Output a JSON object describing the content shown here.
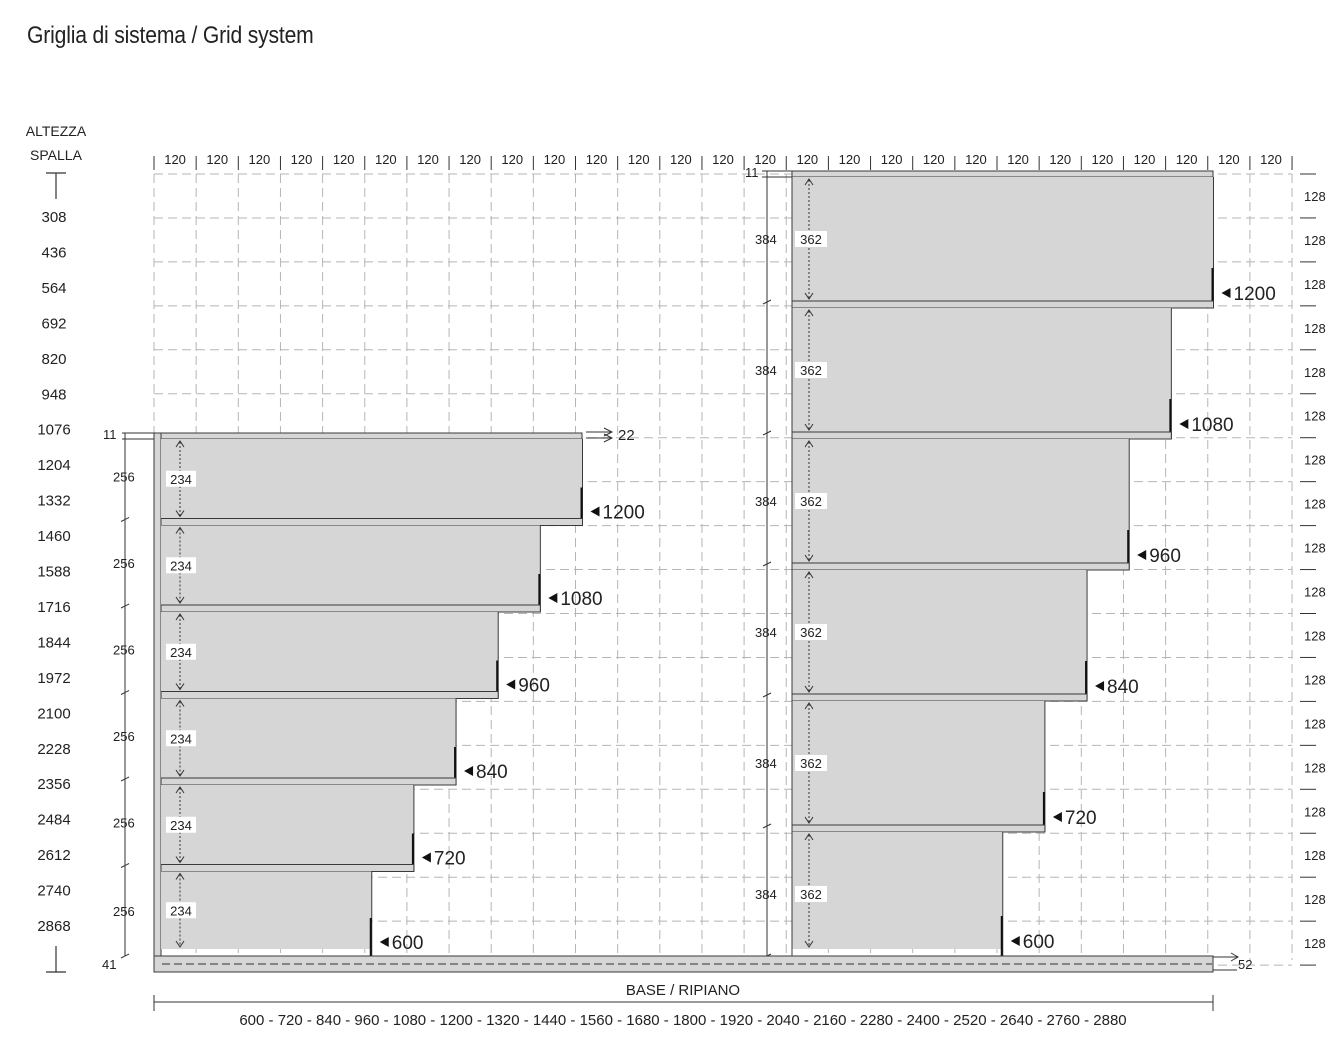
{
  "title": "Griglia di sistema / Grid system",
  "height_axis": {
    "label_line1": "ALTEZZA",
    "label_line2": "SPALLA",
    "values": [
      "308",
      "436",
      "564",
      "692",
      "820",
      "948",
      "1076",
      "1204",
      "1332",
      "1460",
      "1588",
      "1716",
      "1844",
      "1972",
      "2100",
      "2228",
      "2356",
      "2484",
      "2612",
      "2740",
      "2868"
    ]
  },
  "module_width_label": "120",
  "module_count": 27,
  "row_step_label": "128",
  "left_unit": {
    "top_thickness": "11",
    "overhang": "22",
    "bottom_thickness": "41",
    "pitch": "256",
    "clear_height": "234",
    "shelf_widths": [
      "1200",
      "1080",
      "960",
      "840",
      "720",
      "600"
    ]
  },
  "right_unit": {
    "top_thickness": "11",
    "base_depth": "52",
    "pitch": "384",
    "clear_height": "362",
    "shelf_widths": [
      "1200",
      "1080",
      "960",
      "840",
      "720",
      "600"
    ]
  },
  "base_label": "BASE / RIPIANO",
  "base_widths": "600 - 720 - 840 - 960 - 1080 - 1200 - 1320 - 1440 - 1560 - 1680 - 1800 - 1920 - 2040 - 2160 - 2280 - 2400 - 2520 - 2640 - 2760 - 2880",
  "colors": {
    "shelf_fill": "#d6d6d6",
    "shelf_edge": "#3a3a3a",
    "grid_line": "#b5b5b5",
    "text": "#222222"
  }
}
